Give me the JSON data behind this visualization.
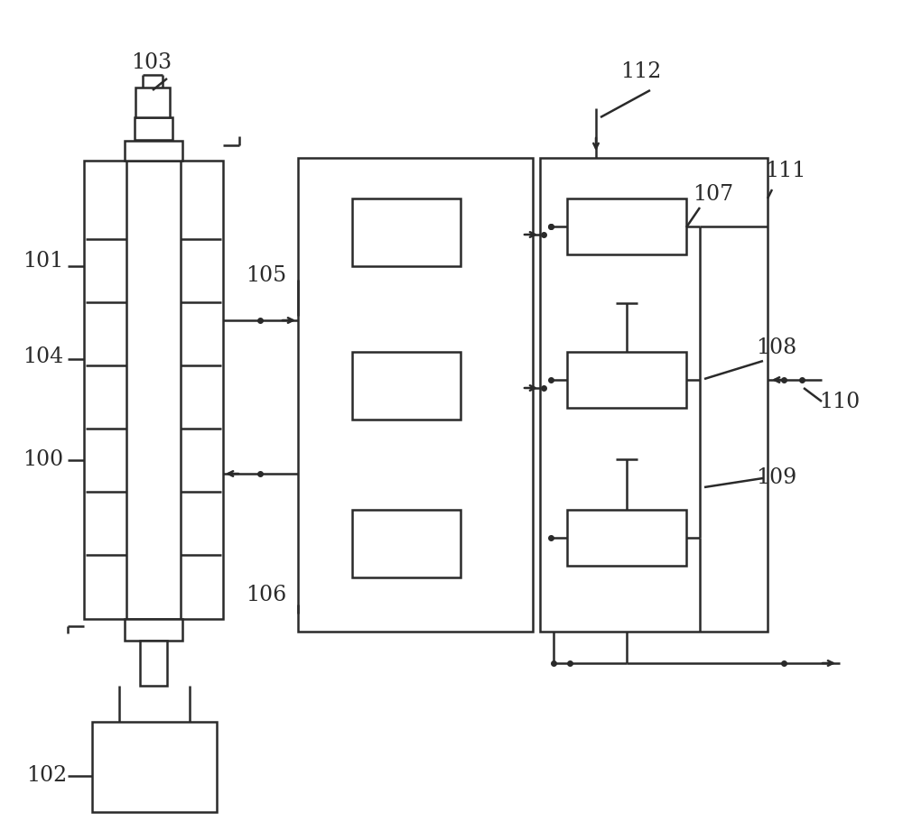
{
  "bg_color": "#ffffff",
  "line_color": "#2a2a2a",
  "lw": 1.8,
  "fig_w": 10.0,
  "fig_h": 9.31,
  "dpi": 100
}
